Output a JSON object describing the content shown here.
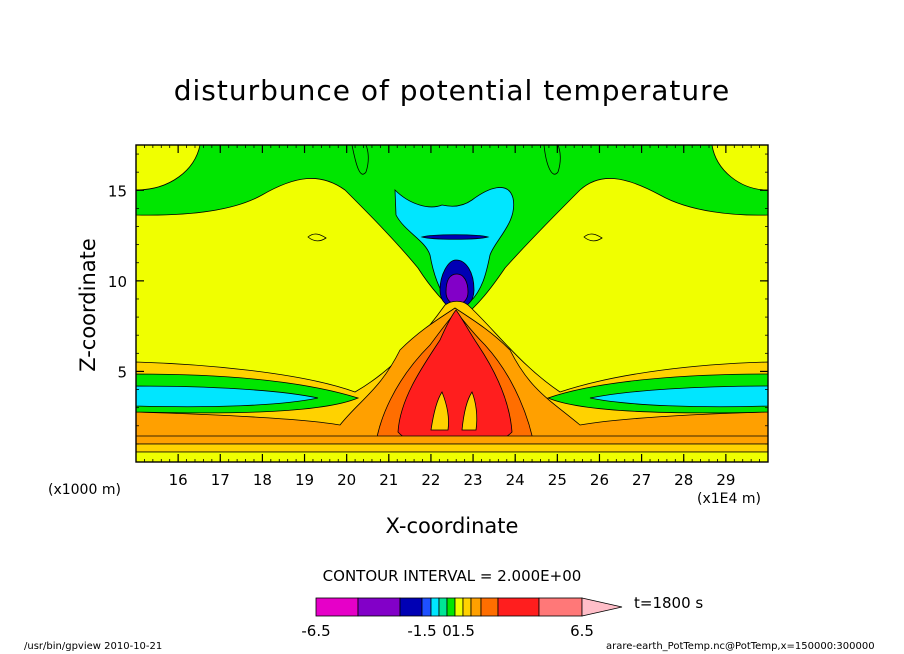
{
  "chart_data": {
    "type": "heatmap",
    "title": "disturbunce of potential temperature",
    "xlabel": "X-coordinate",
    "ylabel": "Z-coordinate",
    "x_unit_left": "(x1000 m)",
    "x_unit_right": "(x1E4 m)",
    "x_ticks": [
      "16",
      "17",
      "18",
      "19",
      "20",
      "21",
      "22",
      "23",
      "24",
      "25",
      "26",
      "27",
      "28",
      "29"
    ],
    "y_ticks": [
      "5",
      "10",
      "15"
    ],
    "xlim": [
      15.0,
      30.0
    ],
    "ylim": [
      0,
      17.5
    ],
    "contour_interval": "CONTOUR INTERVAL = 2.000E+00",
    "time_label": "t=1800 s",
    "colorbar": {
      "colors": [
        "#e600c8",
        "#8200c8",
        "#0000b4",
        "#1e50ff",
        "#00e6ff",
        "#00e696",
        "#00e600",
        "#f0ff00",
        "#ffd200",
        "#ffa000",
        "#ff6e00",
        "#ff1e1e",
        "#ff7878",
        "#ffbec8"
      ],
      "tick_labels": [
        "-6.5",
        "-1.5",
        "0",
        "1.5",
        "6.5"
      ],
      "tick_values": [
        -6.5,
        -1.5,
        0,
        1.5,
        6.5
      ]
    },
    "levels": {
      "yellow": "#f0ff00",
      "green": "#00e600",
      "cyan": "#00e6ff",
      "blue": "#0000b4",
      "purple": "#8200c8",
      "gold": "#ffd200",
      "orange": "#ffa000",
      "dark_orange": "#ff6e00",
      "red": "#ff1e1e"
    }
  },
  "footer": {
    "left": "/usr/bin/gpview  2010-10-21",
    "right": "arare-earth_PotTemp.nc@PotTemp,x=150000:300000"
  }
}
